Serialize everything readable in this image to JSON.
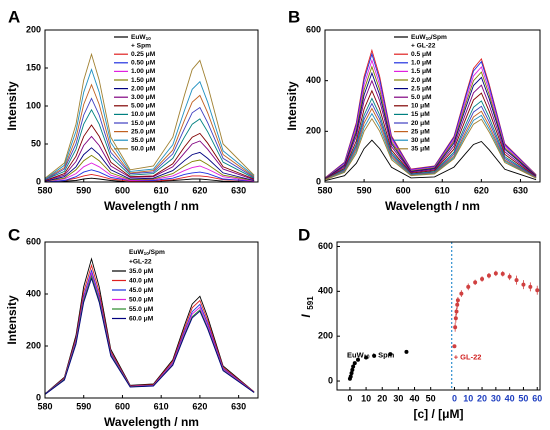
{
  "chart_data": [
    {
      "type": "line",
      "panel": "A",
      "xlabel": "Wavelength / nm",
      "ylabel": "Intensity",
      "x": [
        580,
        585,
        588,
        590,
        592,
        594,
        597,
        602,
        608,
        613,
        616,
        618,
        620,
        622,
        626,
        634
      ],
      "xlim": [
        580,
        635
      ],
      "xticks": [
        580,
        590,
        600,
        610,
        620,
        630
      ],
      "ylim": [
        0,
        200
      ],
      "yticks": [
        0,
        50,
        100,
        150,
        200
      ],
      "legend_note": "+ Spm",
      "series": [
        {
          "name": "EuW10",
          "color": "#000000",
          "values": [
            0,
            1,
            2,
            4,
            5,
            4,
            2,
            0,
            1,
            2,
            3,
            4,
            4,
            3,
            1,
            0
          ]
        },
        {
          "name": "0.25 μM",
          "color": "#e02020",
          "values": [
            0,
            2,
            5,
            8,
            10,
            8,
            4,
            1,
            1,
            3,
            6,
            8,
            8,
            7,
            3,
            1
          ]
        },
        {
          "name": "0.50 μM",
          "color": "#2030e0",
          "values": [
            0,
            2,
            7,
            13,
            16,
            13,
            6,
            2,
            2,
            5,
            10,
            12,
            13,
            11,
            4,
            1
          ]
        },
        {
          "name": "1.00 μM",
          "color": "#e020e0",
          "values": [
            1,
            4,
            11,
            20,
            25,
            20,
            9,
            2,
            3,
            8,
            15,
            19,
            21,
            17,
            7,
            1
          ]
        },
        {
          "name": "1.50 μM",
          "color": "#808000",
          "values": [
            1,
            5,
            16,
            28,
            35,
            28,
            12,
            3,
            4,
            11,
            21,
            27,
            29,
            23,
            9,
            2
          ]
        },
        {
          "name": "2.00 μM",
          "color": "#000080",
          "values": [
            1,
            7,
            20,
            36,
            45,
            36,
            16,
            4,
            5,
            15,
            28,
            36,
            39,
            31,
            12,
            2
          ]
        },
        {
          "name": "3.00 μM",
          "color": "#800080",
          "values": [
            2,
            9,
            27,
            48,
            60,
            48,
            21,
            6,
            7,
            20,
            38,
            50,
            54,
            43,
            17,
            3
          ]
        },
        {
          "name": "5.00 μM",
          "color": "#800000",
          "values": [
            2,
            11,
            34,
            60,
            75,
            60,
            26,
            7,
            8,
            24,
            46,
            59,
            64,
            51,
            20,
            4
          ]
        },
        {
          "name": "10.0 μM",
          "color": "#008080",
          "values": [
            3,
            14,
            43,
            76,
            95,
            76,
            33,
            9,
            11,
            31,
            59,
            76,
            83,
            66,
            26,
            5
          ]
        },
        {
          "name": "15.0 μM",
          "color": "#4040c0",
          "values": [
            3,
            17,
            50,
            88,
            110,
            88,
            39,
            11,
            13,
            37,
            70,
            91,
            98,
            78,
            31,
            6
          ]
        },
        {
          "name": "25.0 μM",
          "color": "#c06020",
          "values": [
            4,
            19,
            58,
            102,
            128,
            102,
            45,
            12,
            15,
            42,
            81,
            105,
            114,
            91,
            36,
            7
          ]
        },
        {
          "name": "35.0 μM",
          "color": "#2090c0",
          "values": [
            4,
            22,
            67,
            118,
            148,
            118,
            52,
            14,
            17,
            49,
            94,
            122,
            132,
            105,
            41,
            8
          ]
        },
        {
          "name": "50.0 μM",
          "color": "#a08030",
          "values": [
            5,
            25,
            76,
            134,
            168,
            134,
            59,
            16,
            21,
            59,
            114,
            148,
            160,
            127,
            50,
            9
          ]
        }
      ]
    },
    {
      "type": "line",
      "panel": "B",
      "xlabel": "Wavelength / nm",
      "ylabel": "Intensity",
      "x": [
        580,
        585,
        588,
        590,
        592,
        594,
        597,
        602,
        608,
        613,
        616,
        618,
        620,
        622,
        626,
        634
      ],
      "xlim": [
        580,
        635
      ],
      "xticks": [
        580,
        590,
        600,
        610,
        620,
        630
      ],
      "ylim": [
        0,
        600
      ],
      "yticks": [
        0,
        200,
        400,
        600
      ],
      "legend_note": "+ GL-22",
      "series": [
        {
          "name": "EuW10/Spm",
          "color": "#000000",
          "values": [
            5,
            25,
            74,
            132,
            165,
            132,
            58,
            16,
            20,
            59,
            113,
            148,
            160,
            127,
            50,
            9
          ]
        },
        {
          "name": "0.5 μM",
          "color": "#e02020",
          "values": [
            16,
            78,
            234,
            416,
            520,
            416,
            182,
            51,
            63,
            180,
            345,
            448,
            486,
            386,
            151,
            29
          ]
        },
        {
          "name": "1.0 μM",
          "color": "#2030e0",
          "values": [
            15,
            76,
            227,
            404,
            505,
            404,
            177,
            49,
            61,
            176,
            337,
            438,
            475,
            378,
            148,
            28
          ]
        },
        {
          "name": "1.5 μM",
          "color": "#e020e0",
          "values": [
            14,
            72,
            216,
            384,
            480,
            384,
            168,
            47,
            58,
            168,
            322,
            419,
            454,
            362,
            142,
            27
          ]
        },
        {
          "name": "2.0 μM",
          "color": "#808000",
          "values": [
            14,
            68,
            205,
            364,
            455,
            364,
            159,
            44,
            56,
            161,
            308,
            400,
            434,
            345,
            135,
            26
          ]
        },
        {
          "name": "2.5 μM",
          "color": "#000080",
          "values": [
            13,
            65,
            194,
            344,
            430,
            344,
            151,
            42,
            53,
            153,
            293,
            381,
            413,
            329,
            129,
            24
          ]
        },
        {
          "name": "5.0 μM",
          "color": "#800080",
          "values": [
            12,
            60,
            180,
            320,
            400,
            320,
            140,
            39,
            49,
            142,
            271,
            352,
            382,
            304,
            119,
            23
          ]
        },
        {
          "name": "10 μM",
          "color": "#800000",
          "values": [
            11,
            54,
            162,
            288,
            360,
            288,
            126,
            35,
            45,
            130,
            249,
            324,
            351,
            279,
            109,
            21
          ]
        },
        {
          "name": "15 μM",
          "color": "#008080",
          "values": [
            10,
            50,
            149,
            264,
            330,
            264,
            116,
            32,
            41,
            118,
            227,
            295,
            320,
            255,
            100,
            19
          ]
        },
        {
          "name": "20 μM",
          "color": "#4040c0",
          "values": [
            9,
            47,
            140,
            248,
            310,
            248,
            109,
            30,
            38,
            111,
            212,
            276,
            299,
            238,
            93,
            18
          ]
        },
        {
          "name": "25 μM",
          "color": "#c06020",
          "values": [
            9,
            44,
            131,
            232,
            290,
            232,
            102,
            28,
            36,
            103,
            198,
            257,
            279,
            222,
            87,
            16
          ]
        },
        {
          "name": "30 μM",
          "color": "#2090c0",
          "values": [
            8,
            41,
            122,
            216,
            270,
            216,
            95,
            27,
            34,
            97,
            187,
            243,
            263,
            209,
            82,
            15
          ]
        },
        {
          "name": "35 μM",
          "color": "#a08030",
          "values": [
            8,
            38,
            113,
            200,
            250,
            200,
            88,
            25,
            32,
            92,
            176,
            228,
            248,
            197,
            77,
            15
          ]
        }
      ]
    },
    {
      "type": "line",
      "panel": "C",
      "xlabel": "Wavelength / nm",
      "ylabel": "Intensity",
      "x": [
        580,
        585,
        588,
        590,
        592,
        594,
        597,
        602,
        608,
        613,
        616,
        618,
        620,
        622,
        626,
        634
      ],
      "xlim": [
        580,
        635
      ],
      "xticks": [
        580,
        590,
        600,
        610,
        620,
        630
      ],
      "ylim": [
        0,
        600
      ],
      "yticks": [
        0,
        200,
        400,
        600
      ],
      "legend_title": "EuW10/Spm",
      "legend_note": "+GL-22",
      "series": [
        {
          "name": "35.0 μM",
          "color": "#000000",
          "values": [
            16,
            80,
            241,
            428,
            535,
            428,
            187,
            49,
            54,
            147,
            279,
            361,
            391,
            311,
            123,
            24
          ]
        },
        {
          "name": "40.0 μM",
          "color": "#e02020",
          "values": [
            15,
            77,
            230,
            408,
            510,
            408,
            179,
            47,
            51,
            141,
            267,
            347,
            375,
            298,
            118,
            23
          ]
        },
        {
          "name": "45.0 μM",
          "color": "#2030e0",
          "values": [
            15,
            74,
            221,
            392,
            490,
            392,
            172,
            45,
            49,
            135,
            256,
            332,
            360,
            286,
            113,
            22
          ]
        },
        {
          "name": "50.0 μM",
          "color": "#e020e0",
          "values": [
            14,
            72,
            216,
            384,
            480,
            384,
            168,
            44,
            48,
            132,
            249,
            323,
            349,
            278,
            110,
            22
          ]
        },
        {
          "name": "55.0 μM",
          "color": "#2a8a2a",
          "values": [
            14,
            71,
            212,
            376,
            470,
            376,
            165,
            43,
            47,
            128,
            242,
            313,
            339,
            269,
            107,
            21
          ]
        },
        {
          "name": "60.0 μM",
          "color": "#000080",
          "values": [
            14,
            69,
            207,
            368,
            460,
            368,
            161,
            42,
            46,
            126,
            238,
            308,
            334,
            265,
            105,
            21
          ]
        }
      ]
    },
    {
      "type": "scatter",
      "panel": "D",
      "xlabel": "[c] / [μM]",
      "ylabel": "I",
      "ylabel_sub": "591",
      "xlim": [
        -8,
        63
      ],
      "xticks": [
        0,
        10,
        20,
        30,
        40,
        50
      ],
      "x2lim": [
        -2,
        62
      ],
      "x2ticks": [
        0,
        10,
        20,
        30,
        40,
        50,
        60
      ],
      "x2tick_color": "#2040c0",
      "divider_color": "#3090d0",
      "ylim": [
        -40,
        620
      ],
      "yticks": [
        0,
        200,
        400,
        600
      ],
      "annotations": [
        {
          "text": "EuW10 + Spm",
          "color": "#000000"
        },
        {
          "text": "+ GL-22",
          "color": "#d02020"
        }
      ],
      "series": [
        {
          "color": "#000000",
          "x": [
            0,
            0.5,
            1,
            1.5,
            2,
            3,
            5,
            10,
            15,
            25,
            35
          ],
          "values": [
            10,
            20,
            35,
            50,
            65,
            80,
            95,
            105,
            112,
            120,
            130
          ]
        },
        {
          "color": "#d04040",
          "axis": "x2",
          "x": [
            0,
            0.5,
            1,
            1.5,
            2,
            2.5,
            5,
            10,
            15,
            20,
            25,
            30,
            35,
            40,
            45,
            50,
            55,
            60
          ],
          "values": [
            155,
            240,
            280,
            310,
            340,
            360,
            390,
            420,
            440,
            455,
            470,
            480,
            478,
            465,
            450,
            430,
            420,
            405
          ],
          "errors": [
            0,
            20,
            20,
            18,
            18,
            15,
            15,
            15,
            12,
            12,
            12,
            12,
            12,
            15,
            20,
            20,
            20,
            20
          ]
        }
      ]
    }
  ]
}
